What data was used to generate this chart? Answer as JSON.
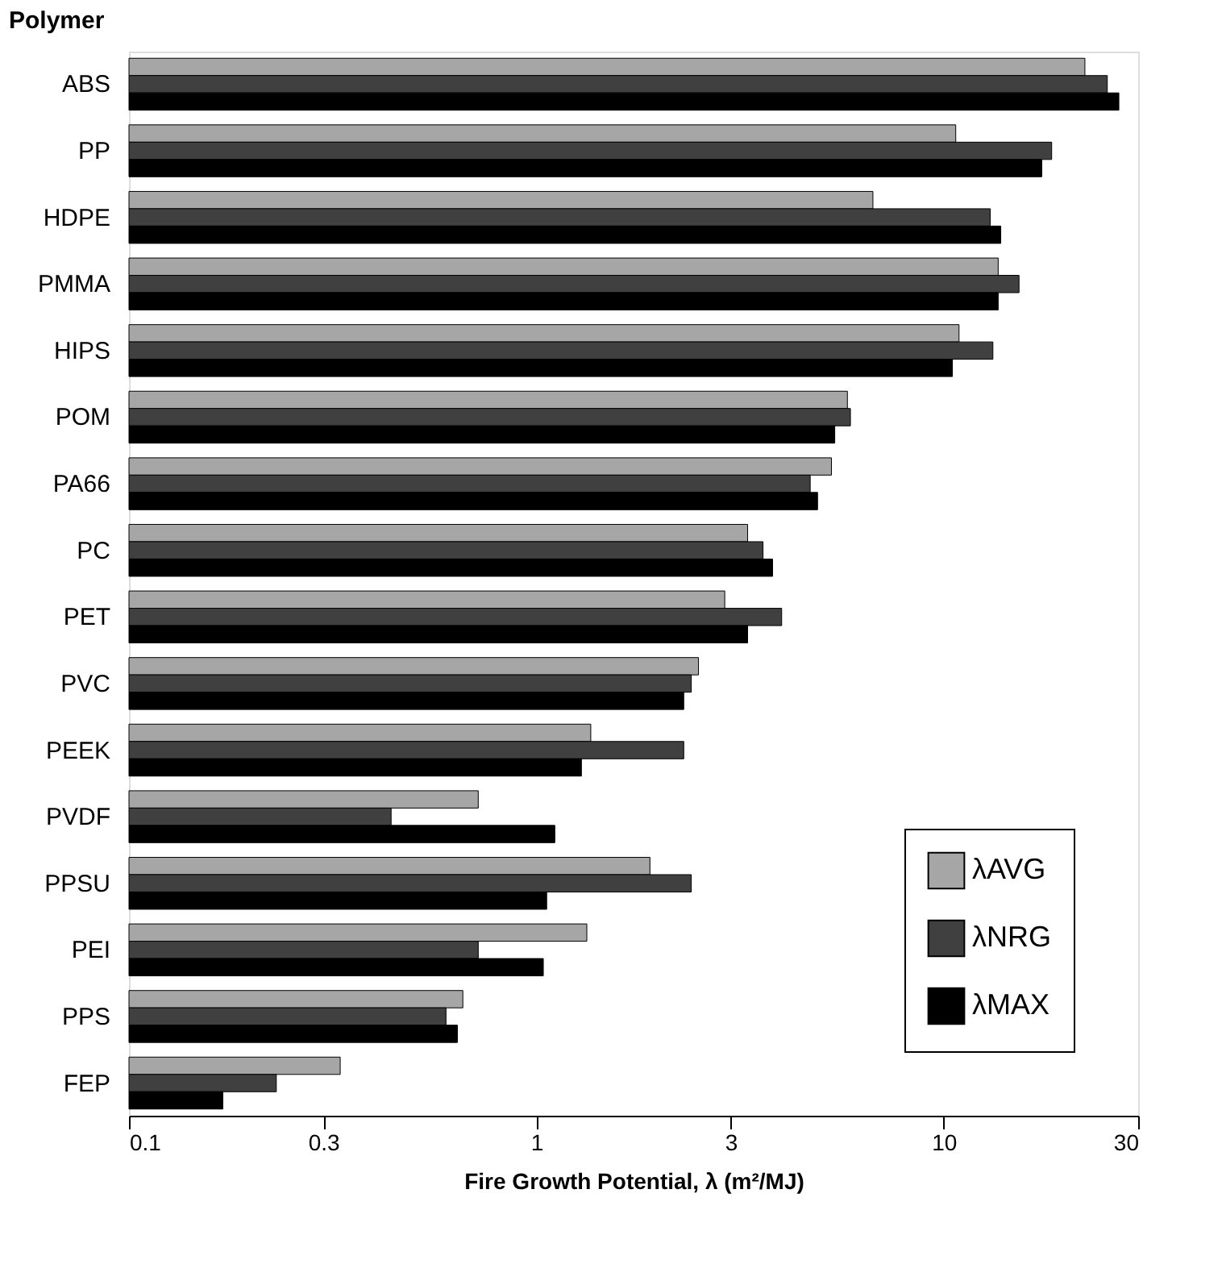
{
  "chart_data": {
    "type": "bar",
    "orientation": "horizontal",
    "ylabel": "Polymer",
    "xlabel": "Fire Growth Potential, λ (m²/MJ)",
    "categories": [
      "ABS",
      "PP",
      "HDPE",
      "PMMA",
      "HIPS",
      "POM",
      "PA66",
      "PC",
      "PET",
      "PVC",
      "PEEK",
      "PVDF",
      "PPSU",
      "PEI",
      "PPS",
      "FEP"
    ],
    "series": [
      {
        "name": "λAVG",
        "color": "#a6a6a6",
        "values": [
          22.2,
          10.7,
          6.7,
          13.6,
          10.9,
          5.8,
          5.3,
          3.3,
          2.9,
          2.5,
          1.36,
          0.72,
          1.9,
          1.33,
          0.66,
          0.33
        ]
      },
      {
        "name": "λNRG",
        "color": "#404040",
        "values": [
          25.2,
          18.4,
          13.0,
          15.3,
          13.2,
          5.9,
          4.7,
          3.6,
          4.0,
          2.4,
          2.3,
          0.44,
          2.4,
          0.72,
          0.6,
          0.23
        ]
      },
      {
        "name": "λMAX",
        "color": "#000000",
        "values": [
          26.9,
          17.4,
          13.8,
          13.6,
          10.5,
          5.4,
          4.9,
          3.8,
          3.3,
          2.3,
          1.29,
          1.11,
          1.06,
          1.04,
          0.64,
          0.17
        ]
      }
    ],
    "log": "x",
    "xlim": [
      0.1,
      30
    ],
    "xticks": [
      0.1,
      0.3,
      1,
      3,
      10,
      30
    ],
    "grid": false,
    "legend": "bottom right"
  }
}
